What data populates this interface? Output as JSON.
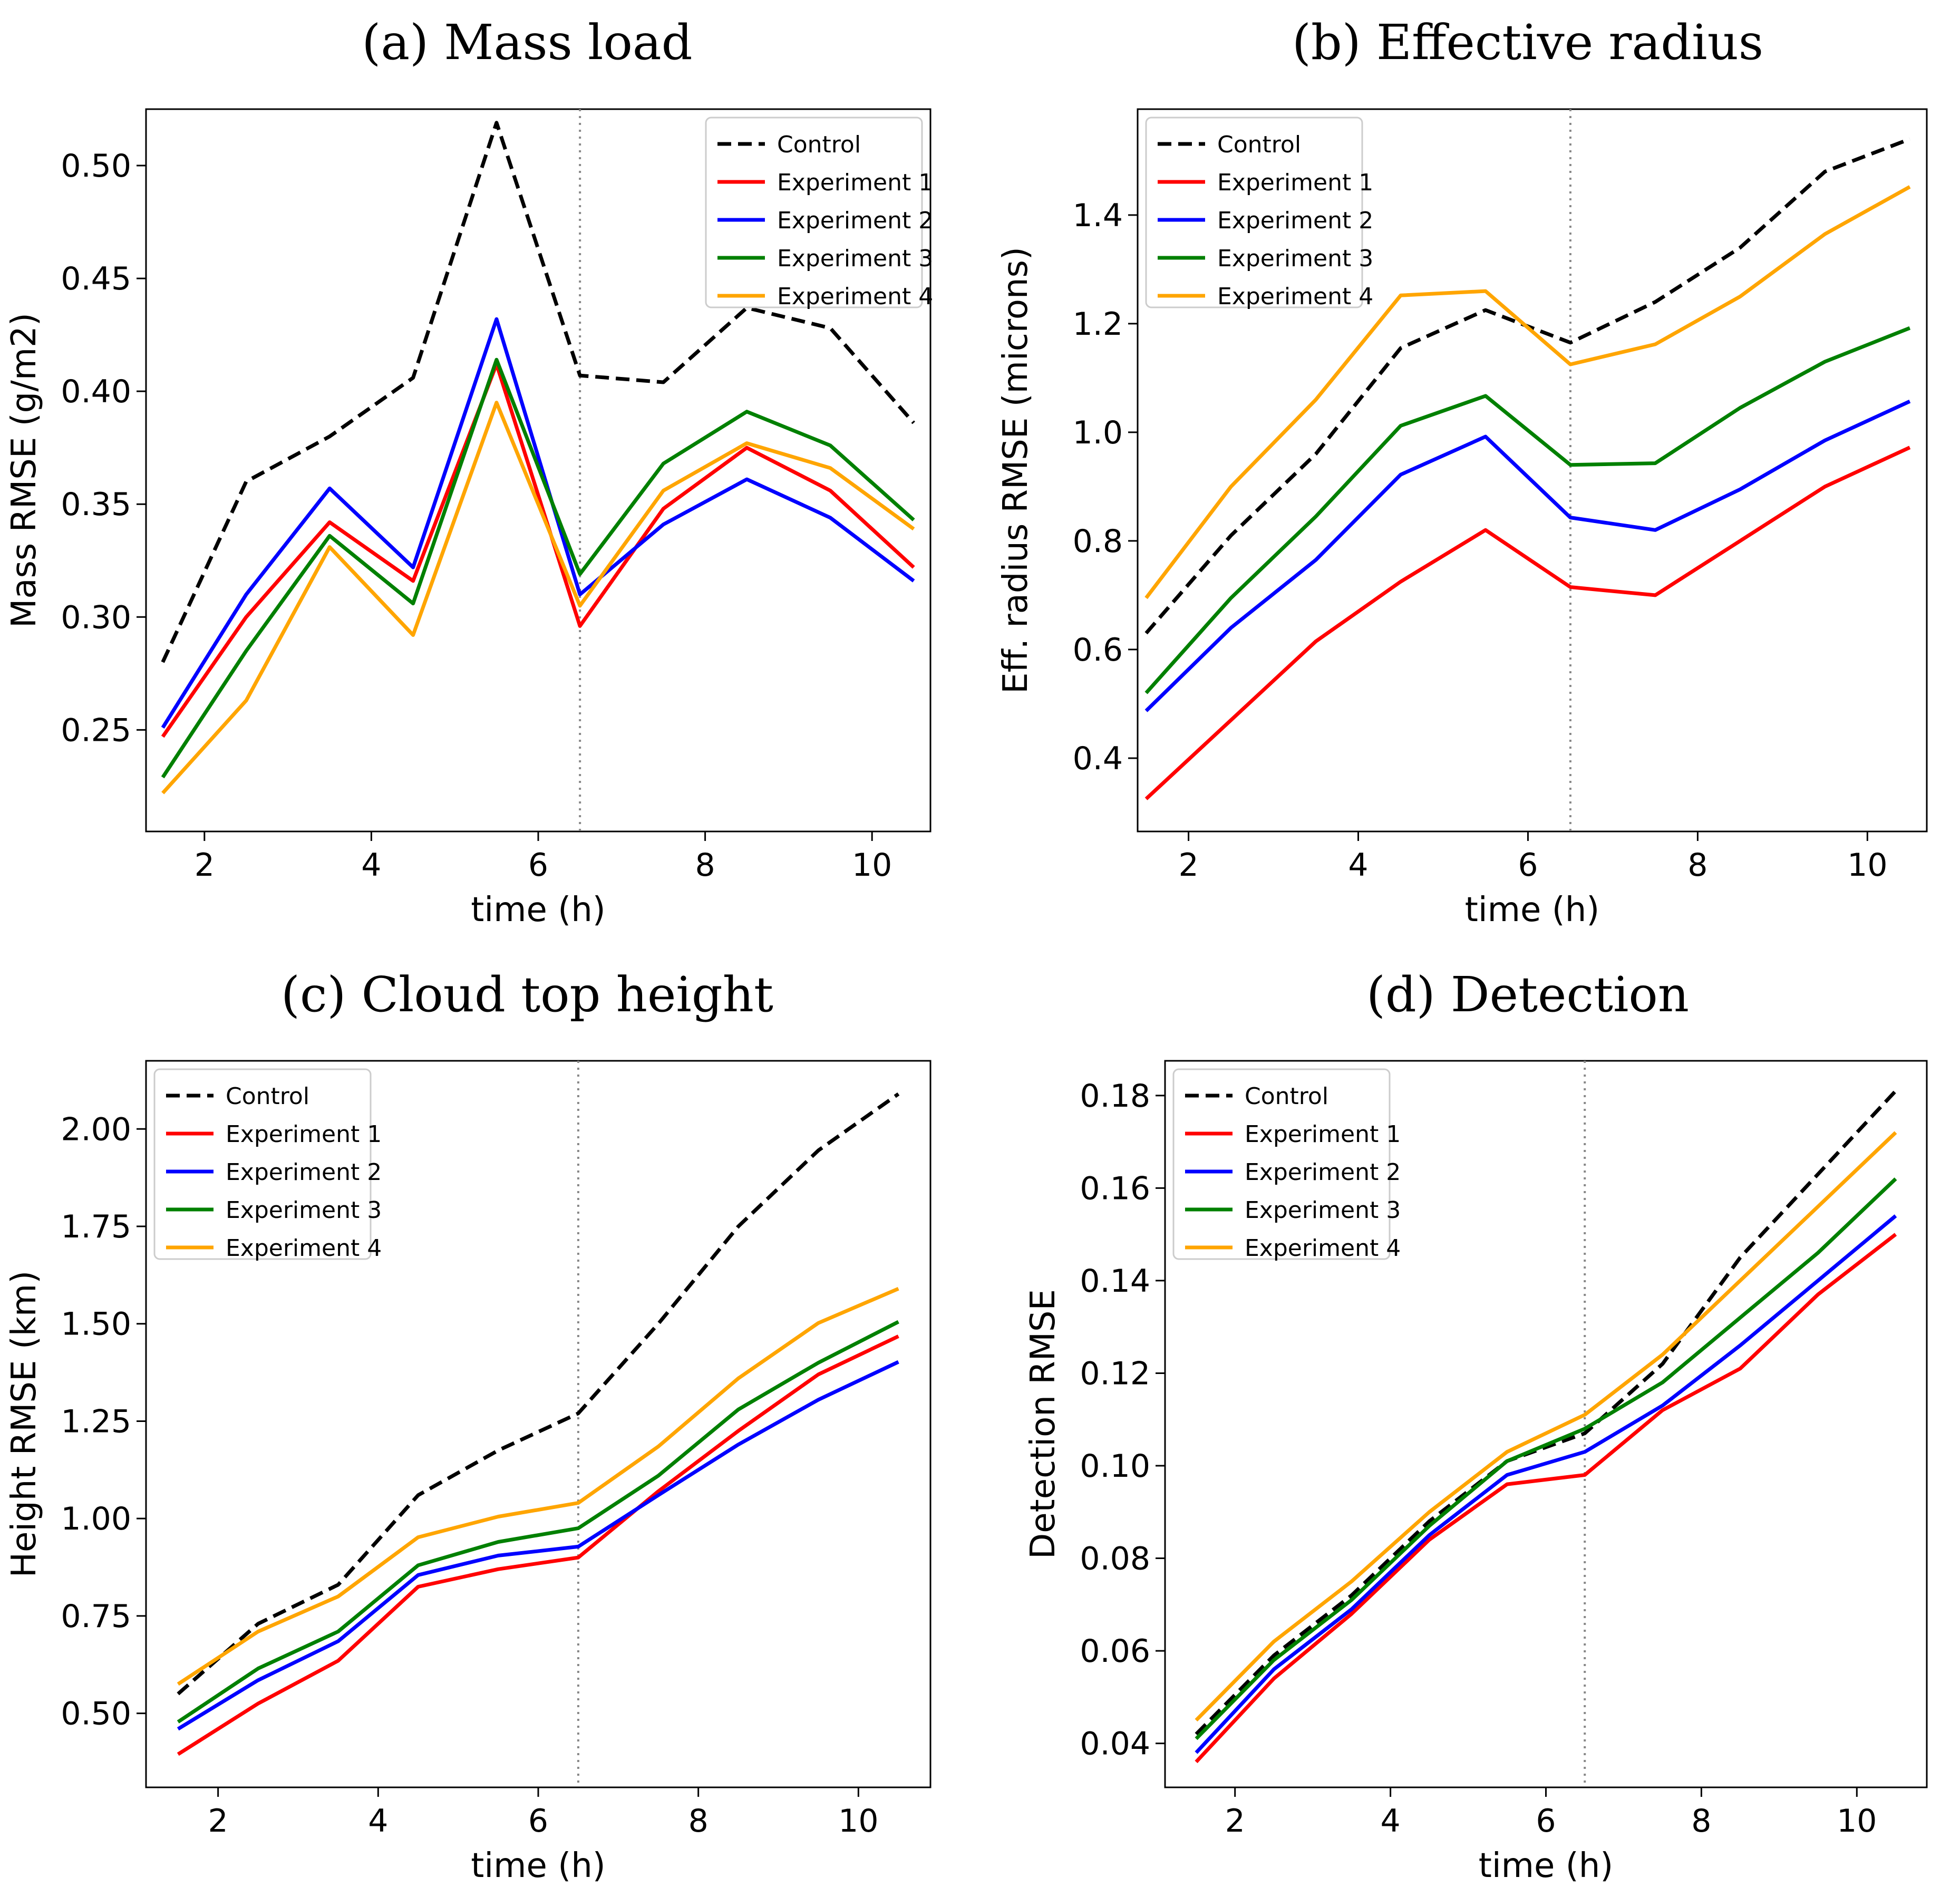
{
  "chart_data": [
    {
      "type": "line",
      "title": "(a) Mass load",
      "xlabel": "time (h)",
      "ylabel": "Mass RMSE (g/m2)",
      "xlim": [
        1.3,
        10.7
      ],
      "ylim": [
        0.205,
        0.525
      ],
      "xticks": [
        2,
        4,
        6,
        8,
        10
      ],
      "yticks": [
        0.25,
        0.3,
        0.35,
        0.4,
        0.45,
        0.5
      ],
      "ytick_decimals": 2,
      "vline_x": 6.5,
      "legend_position": "top-right",
      "x": [
        1.5,
        2.5,
        3.5,
        4.5,
        5.5,
        6.5,
        7.5,
        8.5,
        9.5,
        10.5
      ],
      "series": [
        {
          "name": "Control",
          "color": "#000000",
          "dashed": true,
          "values": [
            0.28,
            0.36,
            0.38,
            0.406,
            0.519,
            0.407,
            0.404,
            0.437,
            0.428,
            0.386
          ]
        },
        {
          "name": "Experiment 1",
          "color": "#ff0000",
          "dashed": false,
          "values": [
            0.247,
            0.3,
            0.342,
            0.316,
            0.412,
            0.296,
            0.348,
            0.375,
            0.356,
            0.322
          ]
        },
        {
          "name": "Experiment 2",
          "color": "#0000ff",
          "dashed": false,
          "values": [
            0.251,
            0.31,
            0.357,
            0.322,
            0.432,
            0.31,
            0.341,
            0.361,
            0.344,
            0.316
          ]
        },
        {
          "name": "Experiment 3",
          "color": "#008000",
          "dashed": false,
          "values": [
            0.229,
            0.285,
            0.336,
            0.306,
            0.414,
            0.319,
            0.368,
            0.391,
            0.376,
            0.343
          ]
        },
        {
          "name": "Experiment 4",
          "color": "#ffa500",
          "dashed": false,
          "values": [
            0.222,
            0.263,
            0.331,
            0.292,
            0.395,
            0.305,
            0.356,
            0.377,
            0.366,
            0.339
          ]
        }
      ]
    },
    {
      "type": "line",
      "title": "(b) Effective radius",
      "xlabel": "time (h)",
      "ylabel": "Eff. radius RMSE (microns)",
      "xlim": [
        1.4,
        10.7
      ],
      "ylim": [
        0.265,
        1.595
      ],
      "xticks": [
        2,
        4,
        6,
        8,
        10
      ],
      "yticks": [
        0.4,
        0.6,
        0.8,
        1.0,
        1.2,
        1.4
      ],
      "ytick_decimals": 1,
      "vline_x": 6.5,
      "legend_position": "top-left",
      "x": [
        1.5,
        2.5,
        3.5,
        4.5,
        5.5,
        6.5,
        7.5,
        8.5,
        9.5,
        10.5
      ],
      "series": [
        {
          "name": "Control",
          "color": "#000000",
          "dashed": true,
          "values": [
            0.63,
            0.81,
            0.96,
            1.155,
            1.225,
            1.165,
            1.24,
            1.34,
            1.48,
            1.54
          ]
        },
        {
          "name": "Experiment 1",
          "color": "#ff0000",
          "dashed": false,
          "values": [
            0.325,
            0.47,
            0.615,
            0.725,
            0.82,
            0.715,
            0.7,
            0.8,
            0.9,
            0.972
          ]
        },
        {
          "name": "Experiment 2",
          "color": "#0000ff",
          "dashed": false,
          "values": [
            0.487,
            0.64,
            0.765,
            0.922,
            0.992,
            0.843,
            0.82,
            0.895,
            0.985,
            1.057
          ]
        },
        {
          "name": "Experiment 3",
          "color": "#008000",
          "dashed": false,
          "values": [
            0.52,
            0.695,
            0.845,
            1.012,
            1.067,
            0.94,
            0.943,
            1.045,
            1.13,
            1.192
          ]
        },
        {
          "name": "Experiment 4",
          "color": "#ffa500",
          "dashed": false,
          "values": [
            0.695,
            0.9,
            1.06,
            1.252,
            1.26,
            1.125,
            1.162,
            1.25,
            1.365,
            1.452
          ]
        }
      ]
    },
    {
      "type": "line",
      "title": "(c) Cloud top height",
      "xlabel": "time (h)",
      "ylabel": "Height RMSE (km)",
      "xlim": [
        1.1,
        10.9
      ],
      "ylim": [
        0.31,
        2.175
      ],
      "xticks": [
        2,
        4,
        6,
        8,
        10
      ],
      "yticks": [
        0.5,
        0.75,
        1.0,
        1.25,
        1.5,
        1.75,
        2.0
      ],
      "ytick_decimals": 2,
      "vline_x": 6.5,
      "legend_position": "top-left",
      "x": [
        1.5,
        2.5,
        3.5,
        4.5,
        5.5,
        6.5,
        7.5,
        8.5,
        9.5,
        10.5
      ],
      "series": [
        {
          "name": "Control",
          "color": "#000000",
          "dashed": true,
          "values": [
            0.55,
            0.73,
            0.83,
            1.06,
            1.175,
            1.27,
            1.5,
            1.75,
            1.945,
            2.09
          ]
        },
        {
          "name": "Experiment 1",
          "color": "#ff0000",
          "dashed": false,
          "values": [
            0.395,
            0.525,
            0.635,
            0.825,
            0.87,
            0.9,
            1.07,
            1.225,
            1.37,
            1.468
          ]
        },
        {
          "name": "Experiment 2",
          "color": "#0000ff",
          "dashed": false,
          "values": [
            0.46,
            0.585,
            0.685,
            0.855,
            0.905,
            0.928,
            1.06,
            1.19,
            1.305,
            1.402
          ]
        },
        {
          "name": "Experiment 3",
          "color": "#008000",
          "dashed": false,
          "values": [
            0.478,
            0.615,
            0.71,
            0.88,
            0.94,
            0.975,
            1.11,
            1.28,
            1.4,
            1.505
          ]
        },
        {
          "name": "Experiment 4",
          "color": "#ffa500",
          "dashed": false,
          "values": [
            0.575,
            0.71,
            0.8,
            0.952,
            1.005,
            1.04,
            1.185,
            1.36,
            1.502,
            1.59
          ]
        }
      ]
    },
    {
      "type": "line",
      "title": "(d) Detection",
      "xlabel": "time (h)",
      "ylabel": "Detection RMSE",
      "xlim": [
        1.1,
        10.9
      ],
      "ylim": [
        0.0305,
        0.1875
      ],
      "xticks": [
        2,
        4,
        6,
        8,
        10
      ],
      "yticks": [
        0.04,
        0.06,
        0.08,
        0.1,
        0.12,
        0.14,
        0.16,
        0.18
      ],
      "ytick_decimals": 2,
      "vline_x": 6.5,
      "legend_position": "top-left",
      "x": [
        1.5,
        2.5,
        3.5,
        4.5,
        5.5,
        6.5,
        7.5,
        8.5,
        9.5,
        10.5
      ],
      "series": [
        {
          "name": "Control",
          "color": "#000000",
          "dashed": true,
          "values": [
            0.042,
            0.059,
            0.072,
            0.088,
            0.101,
            0.107,
            0.122,
            0.145,
            0.163,
            0.181
          ]
        },
        {
          "name": "Experiment 1",
          "color": "#ff0000",
          "dashed": false,
          "values": [
            0.036,
            0.054,
            0.068,
            0.084,
            0.096,
            0.098,
            0.112,
            0.121,
            0.137,
            0.15
          ]
        },
        {
          "name": "Experiment 2",
          "color": "#0000ff",
          "dashed": false,
          "values": [
            0.038,
            0.056,
            0.069,
            0.085,
            0.098,
            0.103,
            0.113,
            0.126,
            0.14,
            0.154
          ]
        },
        {
          "name": "Experiment 3",
          "color": "#008000",
          "dashed": false,
          "values": [
            0.041,
            0.058,
            0.071,
            0.087,
            0.101,
            0.108,
            0.118,
            0.132,
            0.146,
            0.162
          ]
        },
        {
          "name": "Experiment 4",
          "color": "#ffa500",
          "dashed": false,
          "values": [
            0.045,
            0.062,
            0.075,
            0.09,
            0.103,
            0.111,
            0.124,
            0.14,
            0.156,
            0.172
          ]
        }
      ]
    }
  ]
}
